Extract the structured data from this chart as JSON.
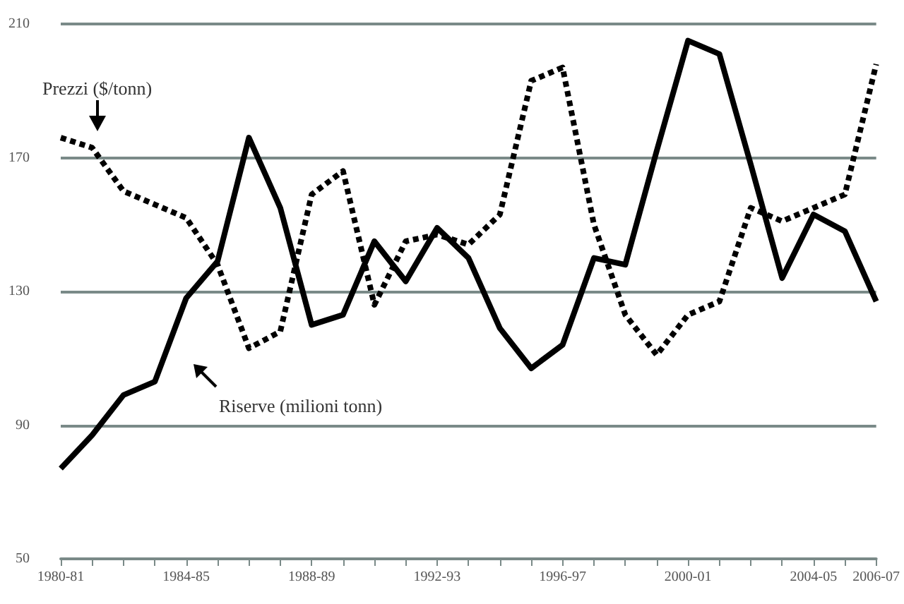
{
  "chart_data": {
    "type": "line",
    "categories": [
      "1980-81",
      null,
      null,
      null,
      "1984-85",
      null,
      null,
      null,
      "1988-89",
      null,
      null,
      null,
      "1992-93",
      null,
      null,
      null,
      "1996-97",
      null,
      null,
      null,
      "2000-01",
      null,
      null,
      null,
      "2004-05",
      null,
      "2006-07"
    ],
    "series": [
      {
        "name": "Prezzi ($/tonn)",
        "color": "#000000",
        "line_style": "dotted",
        "values": [
          176,
          173,
          160,
          156,
          152,
          138,
          113,
          118,
          159,
          166,
          126,
          145,
          147,
          144,
          153,
          193,
          197,
          150,
          123,
          111,
          123,
          127,
          155,
          151,
          155,
          159,
          198
        ]
      },
      {
        "name": "Riserve (milioni tonn)",
        "color": "#000000",
        "line_style": "solid",
        "values": [
          77,
          87,
          99,
          103,
          128,
          139,
          176,
          155,
          120,
          123,
          145,
          133,
          149,
          140,
          119,
          107,
          114,
          140,
          138,
          172,
          205,
          201,
          168,
          134,
          153,
          148,
          127
        ]
      }
    ],
    "ylim": [
      50,
      210
    ],
    "yticks": [
      50,
      90,
      130,
      170,
      210
    ],
    "grid": "y",
    "legend": "left",
    "marker": "none"
  }
}
